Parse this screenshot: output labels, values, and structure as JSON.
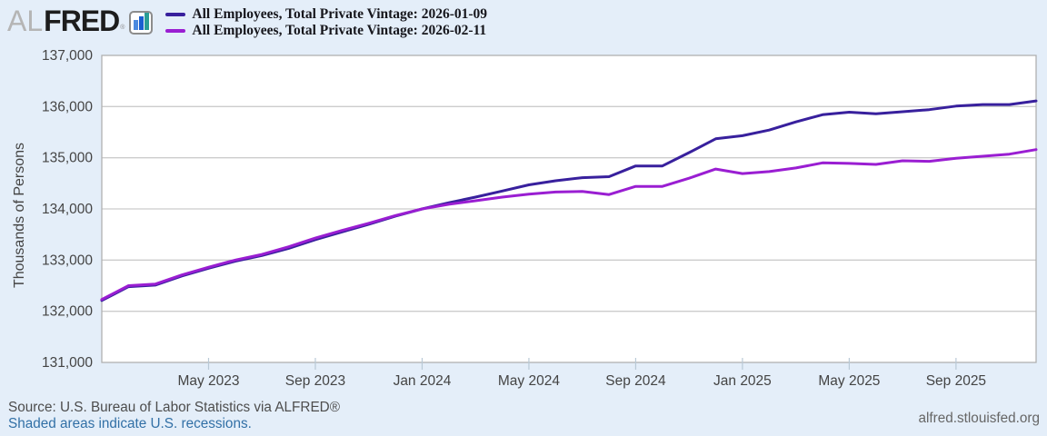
{
  "header": {
    "logo": {
      "prefix": "AL",
      "brand": "FRED",
      "registered": "®",
      "icon": "fred-bar-chart-icon"
    }
  },
  "footer": {
    "source": "Source: U.S. Bureau of Labor Statistics via ALFRED®",
    "recessions_note": "Shaded areas indicate U.S. recessions.",
    "site_link": "alfred.stlouisfed.org"
  },
  "colors": {
    "page_bg": "#e4eef9",
    "plot_bg": "#ffffff",
    "grid": "#cccccc",
    "plot_border": "#b0b0b0",
    "tick": "#b9c9d6",
    "axis_text": "#444444",
    "series_vintage_2026_01_09": "#38209d",
    "series_vintage_2026_02_11": "#9a1ed2"
  },
  "chart_data": {
    "type": "line",
    "title": "",
    "xlabel": "",
    "ylabel": "Thousands of Persons",
    "ylim": [
      131000,
      137000
    ],
    "grid": "horizontal-only",
    "legend_position": "top",
    "frequency": "monthly",
    "months": [
      "2023-01",
      "2023-02",
      "2023-03",
      "2023-04",
      "2023-05",
      "2023-06",
      "2023-07",
      "2023-08",
      "2023-09",
      "2023-10",
      "2023-11",
      "2023-12",
      "2024-01",
      "2024-02",
      "2024-03",
      "2024-04",
      "2024-05",
      "2024-06",
      "2024-07",
      "2024-08",
      "2024-09",
      "2024-10",
      "2024-11",
      "2024-12",
      "2025-01",
      "2025-02",
      "2025-03",
      "2025-04",
      "2025-05",
      "2025-06",
      "2025-07",
      "2025-08",
      "2025-09",
      "2025-10",
      "2025-11",
      "2025-12"
    ],
    "y_ticks": [
      {
        "value": 131000,
        "label": "131,000"
      },
      {
        "value": 132000,
        "label": "132,000"
      },
      {
        "value": 133000,
        "label": "133,000"
      },
      {
        "value": 134000,
        "label": "134,000"
      },
      {
        "value": 135000,
        "label": "135,000"
      },
      {
        "value": 136000,
        "label": "136,000"
      },
      {
        "value": 137000,
        "label": "137,000"
      }
    ],
    "x_ticks": [
      {
        "label": "May 2023",
        "month_index": 4
      },
      {
        "label": "Sep 2023",
        "month_index": 8
      },
      {
        "label": "Jan 2024",
        "month_index": 12
      },
      {
        "label": "May 2024",
        "month_index": 16
      },
      {
        "label": "Sep 2024",
        "month_index": 20
      },
      {
        "label": "Jan 2025",
        "month_index": 24
      },
      {
        "label": "May 2025",
        "month_index": 28
      },
      {
        "label": "Sep 2025",
        "month_index": 32
      }
    ],
    "series": [
      {
        "name": "All Employees, Total Private",
        "vintage": "2026-01-09",
        "legend_label": "All Employees, Total Private Vintage: 2026-01-09",
        "color": "#38209d",
        "values": [
          132210,
          132480,
          132510,
          132690,
          132840,
          132980,
          133090,
          133230,
          133400,
          133550,
          133700,
          133860,
          134000,
          134120,
          134230,
          134350,
          134470,
          134550,
          134610,
          134630,
          134840,
          134840,
          135100,
          135370,
          135430,
          135540,
          135700,
          135840,
          135890,
          135860,
          135900,
          135940,
          136010,
          136040,
          136040,
          136110
        ]
      },
      {
        "name": "All Employees, Total Private",
        "vintage": "2026-02-11",
        "legend_label": "All Employees, Total Private Vintage: 2026-02-11",
        "color": "#9a1ed2",
        "values": [
          132230,
          132500,
          132530,
          132710,
          132860,
          133000,
          133110,
          133260,
          133430,
          133580,
          133720,
          133870,
          134000,
          134090,
          134160,
          134230,
          134290,
          134330,
          134340,
          134280,
          134440,
          134440,
          134600,
          134780,
          134690,
          134730,
          134800,
          134900,
          134890,
          134870,
          134940,
          134930,
          134990,
          135030,
          135070,
          135160
        ]
      }
    ]
  }
}
